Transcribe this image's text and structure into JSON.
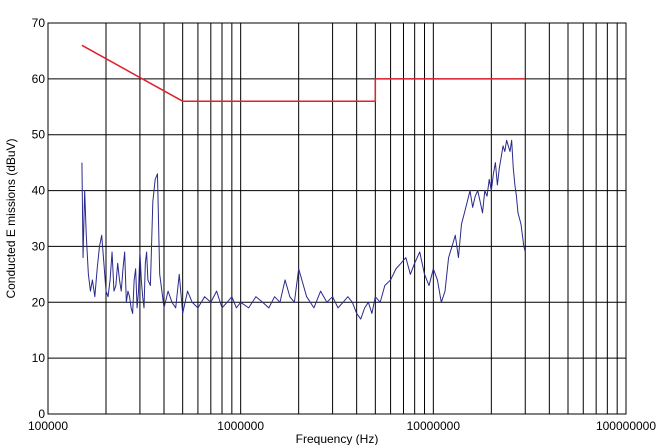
{
  "chart_data": {
    "type": "line",
    "title": "",
    "xlabel": "Frequency (Hz)",
    "ylabel": "Conducted E missions (dBuV)",
    "x_scale": "log",
    "xlim": [
      100000,
      100000000
    ],
    "ylim": [
      0,
      70
    ],
    "x_tick_labels": [
      "100000",
      "1000000",
      "10000000",
      "100000000"
    ],
    "x_tick_values": [
      100000,
      1000000,
      10000000,
      100000000
    ],
    "y_ticks": [
      0,
      10,
      20,
      30,
      40,
      50,
      60,
      70
    ],
    "grid": true,
    "legend": "none",
    "series": [
      {
        "role": "limit",
        "color": "#e0202a",
        "x": [
          150000,
          500000,
          500000,
          5000000,
          5000000,
          30000000
        ],
        "y": [
          66,
          56,
          56,
          56,
          60,
          60
        ]
      },
      {
        "role": "measurement",
        "color": "#2a2a8c",
        "x": [
          150000,
          152000,
          155000,
          158000,
          162000,
          166000,
          170000,
          175000,
          180000,
          185000,
          190000,
          195000,
          200000,
          205000,
          210000,
          215000,
          220000,
          225000,
          230000,
          235000,
          240000,
          245000,
          250000,
          255000,
          260000,
          265000,
          270000,
          275000,
          280000,
          285000,
          290000,
          295000,
          300000,
          305000,
          310000,
          315000,
          320000,
          325000,
          330000,
          340000,
          350000,
          360000,
          370000,
          380000,
          390000,
          400000,
          420000,
          440000,
          460000,
          480000,
          500000,
          530000,
          560000,
          600000,
          650000,
          700000,
          750000,
          800000,
          850000,
          900000,
          950000,
          1000000,
          1100000,
          1200000,
          1300000,
          1400000,
          1500000,
          1600000,
          1700000,
          1800000,
          1900000,
          2000000,
          2200000,
          2400000,
          2600000,
          2800000,
          3000000,
          3200000,
          3400000,
          3600000,
          3800000,
          4000000,
          4200000,
          4400000,
          4600000,
          4800000,
          5000000,
          5300000,
          5600000,
          6000000,
          6400000,
          6800000,
          7200000,
          7600000,
          8000000,
          8500000,
          9000000,
          9500000,
          10000000,
          10500000,
          11000000,
          11500000,
          12000000,
          12500000,
          13000000,
          13500000,
          14000000,
          14500000,
          15000000,
          15500000,
          16000000,
          16500000,
          17000000,
          17500000,
          18000000,
          18500000,
          19000000,
          19500000,
          20000000,
          20500000,
          21000000,
          21500000,
          22000000,
          22500000,
          23000000,
          23500000,
          24000000,
          24500000,
          25000000,
          25500000,
          26000000,
          26500000,
          27000000,
          27500000,
          28000000,
          28500000,
          29000000,
          29500000,
          30000000
        ],
        "y": [
          45,
          28,
          40,
          32,
          25,
          22,
          24,
          21,
          26,
          30,
          32,
          27,
          22,
          21,
          24,
          29,
          22,
          23,
          27,
          24,
          22,
          26,
          29,
          20,
          22,
          21,
          19,
          18,
          24,
          26,
          19,
          22,
          29,
          24,
          21,
          19,
          27,
          29,
          24,
          23,
          38,
          42,
          43,
          25,
          22,
          19,
          22,
          20,
          19,
          25,
          18,
          22,
          20,
          19,
          21,
          20,
          22,
          19,
          20,
          21,
          19,
          20,
          19,
          21,
          20,
          19,
          21,
          20,
          24,
          21,
          20,
          26,
          21,
          19,
          22,
          20,
          21,
          19,
          20,
          21,
          20,
          18,
          17,
          19,
          20,
          18,
          21,
          20,
          23,
          24,
          26,
          27,
          28,
          25,
          27,
          29,
          25,
          23,
          26,
          24,
          20,
          22,
          28,
          30,
          32,
          28,
          34,
          36,
          38,
          40,
          37,
          39,
          40,
          38,
          36,
          40,
          39,
          42,
          40,
          43,
          45,
          41,
          44,
          46,
          48,
          47,
          49,
          48,
          47,
          49,
          44,
          41,
          39,
          36,
          35,
          34,
          32,
          30,
          29
        ]
      }
    ]
  }
}
